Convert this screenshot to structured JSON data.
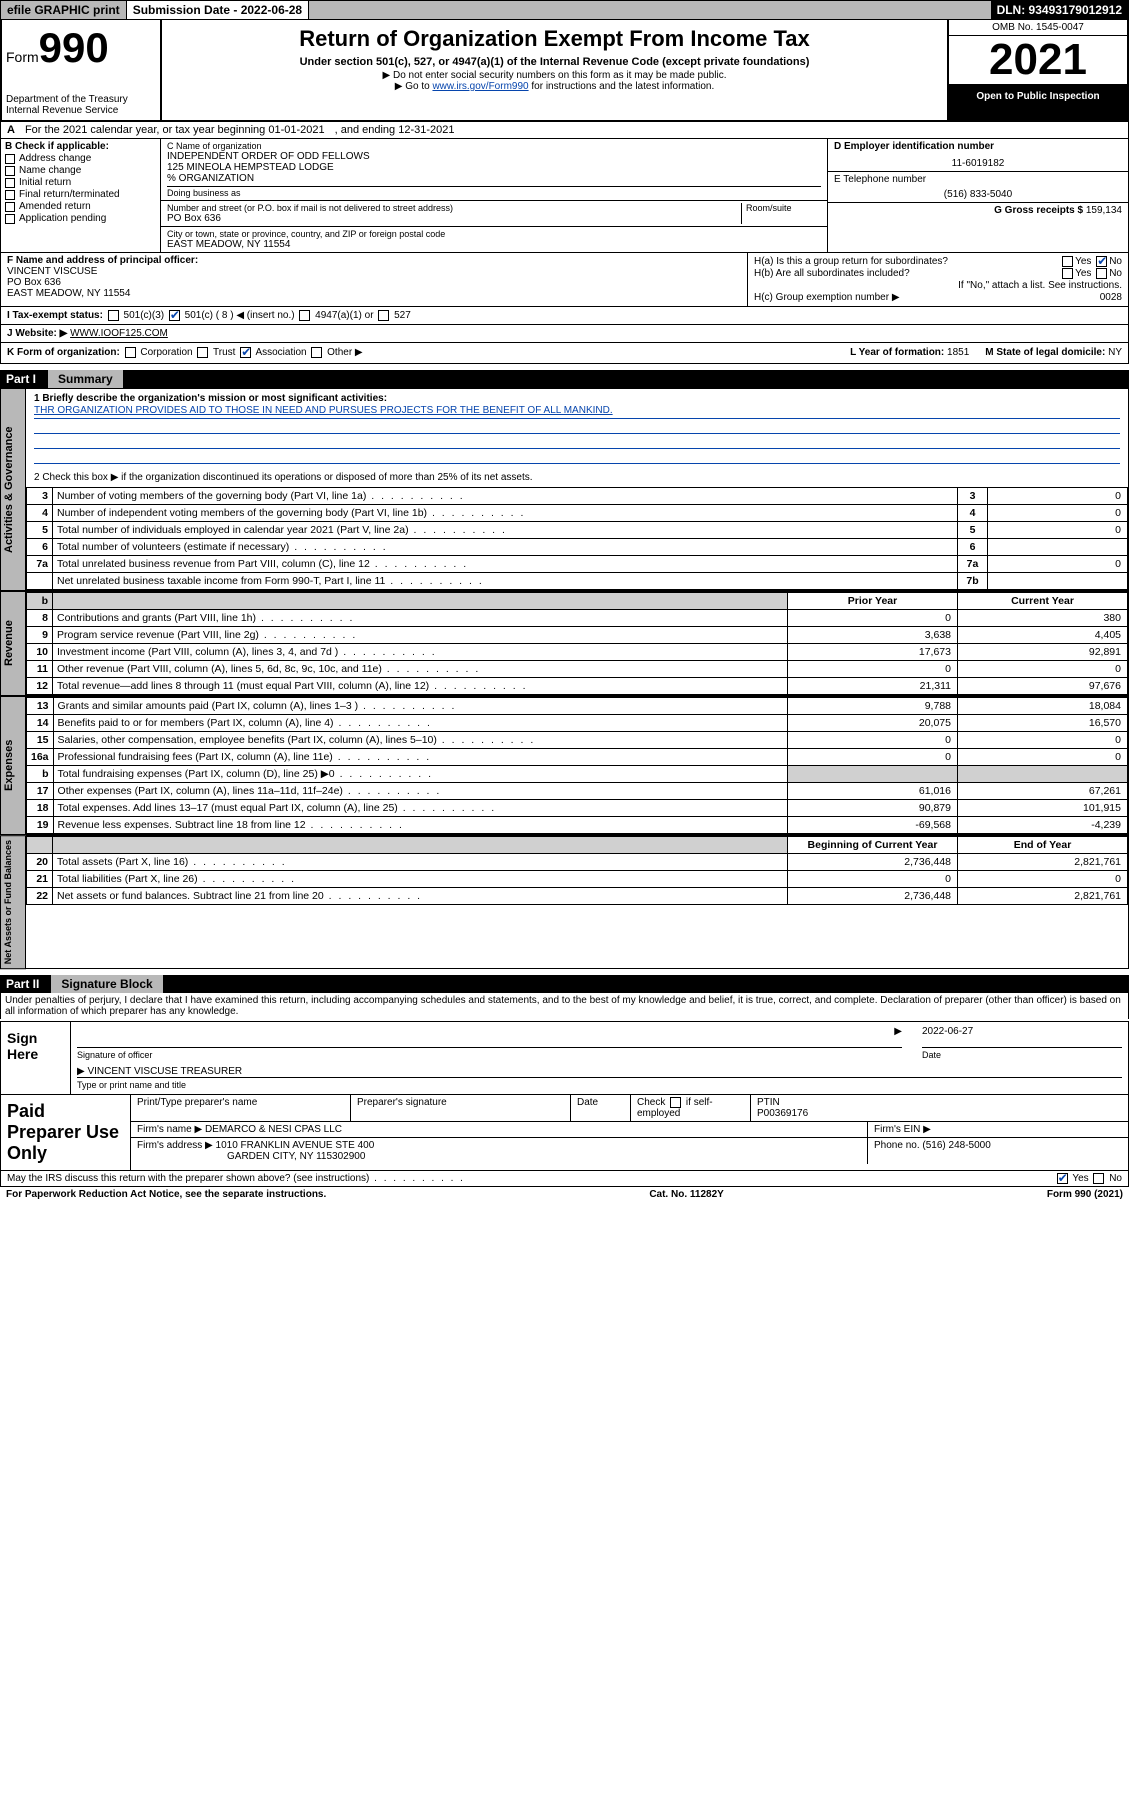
{
  "topbar": {
    "efile": "efile GRAPHIC print",
    "submission": "Submission Date - 2022-06-28",
    "dln": "DLN: 93493179012912"
  },
  "header": {
    "form_prefix": "Form",
    "form_num": "990",
    "dept": "Department of the Treasury",
    "irs": "Internal Revenue Service",
    "title": "Return of Organization Exempt From Income Tax",
    "sub1": "Under section 501(c), 527, or 4947(a)(1) of the Internal Revenue Code (except private foundations)",
    "sub2": "▶ Do not enter social security numbers on this form as it may be made public.",
    "sub3_pre": "▶ Go to ",
    "sub3_link": "www.irs.gov/Form990",
    "sub3_post": " for instructions and the latest information.",
    "omb": "OMB No. 1545-0047",
    "year": "2021",
    "open": "Open to Public Inspection"
  },
  "rowA": {
    "label": "A",
    "text": "For the 2021 calendar year, or tax year beginning 01-01-2021",
    "ending": ", and ending 12-31-2021"
  },
  "boxB": {
    "label": "B Check if applicable:",
    "items": [
      "Address change",
      "Name change",
      "Initial return",
      "Final return/terminated",
      "Amended return",
      "Application pending"
    ]
  },
  "boxC": {
    "name_lbl": "C Name of organization",
    "name1": "INDEPENDENT ORDER OF ODD FELLOWS",
    "name2": "125 MINEOLA HEMPSTEAD LODGE",
    "name3": "% ORGANIZATION",
    "dba_lbl": "Doing business as",
    "street_lbl": "Number and street (or P.O. box if mail is not delivered to street address)",
    "room_lbl": "Room/suite",
    "street": "PO Box 636",
    "city_lbl": "City or town, state or province, country, and ZIP or foreign postal code",
    "city": "EAST MEADOW, NY  11554"
  },
  "boxD": {
    "lbl": "D Employer identification number",
    "val": "11-6019182"
  },
  "boxE": {
    "lbl": "E Telephone number",
    "val": "(516) 833-5040"
  },
  "boxG": {
    "lbl": "G Gross receipts $",
    "val": "159,134"
  },
  "boxF": {
    "lbl": "F  Name and address of principal officer:",
    "name": "VINCENT VISCUSE",
    "addr1": "PO Box 636",
    "addr2": "EAST MEADOW, NY  11554"
  },
  "boxH": {
    "a_lbl": "H(a)  Is this a group return for subordinates?",
    "a_yes": "Yes",
    "a_no": "No",
    "b_lbl": "H(b)  Are all subordinates included?",
    "b_yes": "Yes",
    "b_no": "No",
    "b_note": "If \"No,\" attach a list. See instructions.",
    "c_lbl": "H(c)  Group exemption number ▶",
    "c_val": "0028"
  },
  "rowI": {
    "lbl": "I    Tax-exempt status:",
    "o1": "501(c)(3)",
    "o2": "501(c) ( 8 ) ◀ (insert no.)",
    "o3": "4947(a)(1) or",
    "o4": "527"
  },
  "rowJ": {
    "lbl": "J    Website: ▶",
    "val": "WWW.IOOF125.COM"
  },
  "rowK": {
    "lbl": "K Form of organization:",
    "o1": "Corporation",
    "o2": "Trust",
    "o3": "Association",
    "o4": "Other ▶"
  },
  "rowL": {
    "lbl": "L Year of formation:",
    "val": "1851"
  },
  "rowM": {
    "lbl": "M State of legal domicile:",
    "val": "NY"
  },
  "part1": {
    "num": "Part I",
    "title": "Summary"
  },
  "gov": {
    "label": "Activities & Governance",
    "l1_lbl": "1   Briefly describe the organization's mission or most significant activities:",
    "l1_text": "THR ORGANIZATION PROVIDES AID TO THOSE IN NEED AND PURSUES PROJECTS FOR THE BENEFIT OF ALL MANKIND.",
    "l2": "2   Check this box ▶       if the organization discontinued its operations or disposed of more than 25% of its net assets.",
    "rows": [
      {
        "n": "3",
        "desc": "Number of voting members of the governing body (Part VI, line 1a)",
        "key": "3",
        "val": "0"
      },
      {
        "n": "4",
        "desc": "Number of independent voting members of the governing body (Part VI, line 1b)",
        "key": "4",
        "val": "0"
      },
      {
        "n": "5",
        "desc": "Total number of individuals employed in calendar year 2021 (Part V, line 2a)",
        "key": "5",
        "val": "0"
      },
      {
        "n": "6",
        "desc": "Total number of volunteers (estimate if necessary)",
        "key": "6",
        "val": ""
      },
      {
        "n": "7a",
        "desc": "Total unrelated business revenue from Part VIII, column (C), line 12",
        "key": "7a",
        "val": "0"
      },
      {
        "n": "",
        "desc": "Net unrelated business taxable income from Form 990-T, Part I, line 11",
        "key": "7b",
        "val": ""
      }
    ]
  },
  "rev": {
    "label": "Revenue",
    "head_prior": "Prior Year",
    "head_curr": "Current Year",
    "rows": [
      {
        "n": "8",
        "desc": "Contributions and grants (Part VIII, line 1h)",
        "p": "0",
        "c": "380"
      },
      {
        "n": "9",
        "desc": "Program service revenue (Part VIII, line 2g)",
        "p": "3,638",
        "c": "4,405"
      },
      {
        "n": "10",
        "desc": "Investment income (Part VIII, column (A), lines 3, 4, and 7d )",
        "p": "17,673",
        "c": "92,891"
      },
      {
        "n": "11",
        "desc": "Other revenue (Part VIII, column (A), lines 5, 6d, 8c, 9c, 10c, and 11e)",
        "p": "0",
        "c": "0"
      },
      {
        "n": "12",
        "desc": "Total revenue—add lines 8 through 11 (must equal Part VIII, column (A), line 12)",
        "p": "21,311",
        "c": "97,676"
      }
    ]
  },
  "exp": {
    "label": "Expenses",
    "rows": [
      {
        "n": "13",
        "desc": "Grants and similar amounts paid (Part IX, column (A), lines 1–3 )",
        "p": "9,788",
        "c": "18,084"
      },
      {
        "n": "14",
        "desc": "Benefits paid to or for members (Part IX, column (A), line 4)",
        "p": "20,075",
        "c": "16,570"
      },
      {
        "n": "15",
        "desc": "Salaries, other compensation, employee benefits (Part IX, column (A), lines 5–10)",
        "p": "0",
        "c": "0"
      },
      {
        "n": "16a",
        "desc": "Professional fundraising fees (Part IX, column (A), line 11e)",
        "p": "0",
        "c": "0"
      },
      {
        "n": "b",
        "desc": "Total fundraising expenses (Part IX, column (D), line 25) ▶0",
        "p": "shaded",
        "c": "shaded"
      },
      {
        "n": "17",
        "desc": "Other expenses (Part IX, column (A), lines 11a–11d, 11f–24e)",
        "p": "61,016",
        "c": "67,261"
      },
      {
        "n": "18",
        "desc": "Total expenses. Add lines 13–17 (must equal Part IX, column (A), line 25)",
        "p": "90,879",
        "c": "101,915"
      },
      {
        "n": "19",
        "desc": "Revenue less expenses. Subtract line 18 from line 12",
        "p": "-69,568",
        "c": "-4,239"
      }
    ]
  },
  "net": {
    "label": "Net Assets or Fund Balances",
    "head_begin": "Beginning of Current Year",
    "head_end": "End of Year",
    "rows": [
      {
        "n": "20",
        "desc": "Total assets (Part X, line 16)",
        "p": "2,736,448",
        "c": "2,821,761"
      },
      {
        "n": "21",
        "desc": "Total liabilities (Part X, line 26)",
        "p": "0",
        "c": "0"
      },
      {
        "n": "22",
        "desc": "Net assets or fund balances. Subtract line 21 from line 20",
        "p": "2,736,448",
        "c": "2,821,761"
      }
    ]
  },
  "part2": {
    "num": "Part II",
    "title": "Signature Block"
  },
  "sig": {
    "decl": "Under penalties of perjury, I declare that I have examined this return, including accompanying schedules and statements, and to the best of my knowledge and belief, it is true, correct, and complete. Declaration of preparer (other than officer) is based on all information of which preparer has any knowledge.",
    "sign_here": "Sign Here",
    "sig_officer": "Signature of officer",
    "date": "2022-06-27",
    "date_lbl": "Date",
    "name_title": "VINCENT VISCUSE  TREASURER",
    "name_title_lbl": "Type or print name and title"
  },
  "prep": {
    "label": "Paid Preparer Use Only",
    "h1": "Print/Type preparer's name",
    "h2": "Preparer's signature",
    "h3": "Date",
    "h4_check": "Check",
    "h4_if": "if self-employed",
    "h5": "PTIN",
    "ptin": "P00369176",
    "firm_name_lbl": "Firm's name    ▶",
    "firm_name": "DEMARCO & NESI CPAS LLC",
    "firm_ein_lbl": "Firm's EIN ▶",
    "firm_addr_lbl": "Firm's address ▶",
    "firm_addr1": "1010 FRANKLIN AVENUE STE 400",
    "firm_addr2": "GARDEN CITY, NY  115302900",
    "phone_lbl": "Phone no.",
    "phone": "(516) 248-5000"
  },
  "footer": {
    "q": "May the IRS discuss this return with the preparer shown above? (see instructions)",
    "yes": "Yes",
    "no": "No",
    "pra": "For Paperwork Reduction Act Notice, see the separate instructions.",
    "cat": "Cat. No. 11282Y",
    "form": "Form 990 (2021)"
  }
}
